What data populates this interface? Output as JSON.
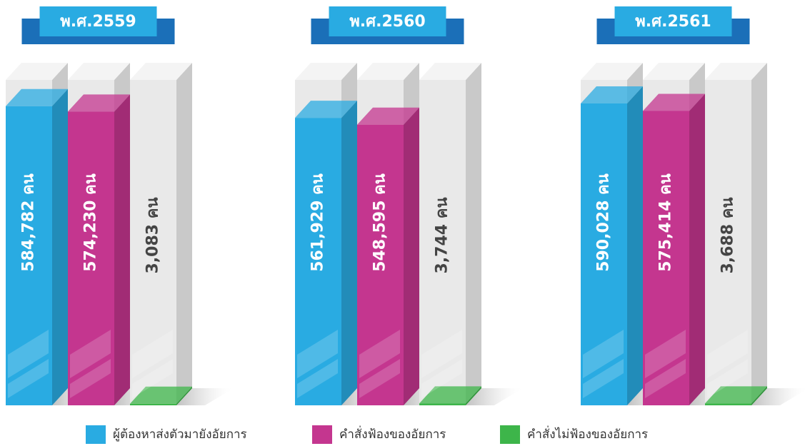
{
  "chart_data": {
    "type": "bar",
    "categories": [
      "พ.ศ.2559",
      "พ.ศ.2560",
      "พ.ศ.2561"
    ],
    "series": [
      {
        "name": "ผู้ต้องหาส่งตัวมายังอัยการ",
        "color": "#29abe2",
        "values": [
          584782,
          561929,
          590028
        ],
        "value_labels": [
          "584,782 คน",
          "561,929 คน",
          "590,028 คน"
        ]
      },
      {
        "name": "คำสั่งฟ้องของอัยการ",
        "color": "#c4368f",
        "values": [
          574230,
          548595,
          575414
        ],
        "value_labels": [
          "574,230 คน",
          "548,595 คน",
          "575,414 คน"
        ]
      },
      {
        "name": "คำสั่งไม่ฟ้องของอัยการ",
        "color": "#3db54a",
        "values": [
          3083,
          3744,
          3688
        ],
        "value_labels": [
          "3,083 คน",
          "3,744 คน",
          "3,688 คน"
        ]
      }
    ]
  }
}
